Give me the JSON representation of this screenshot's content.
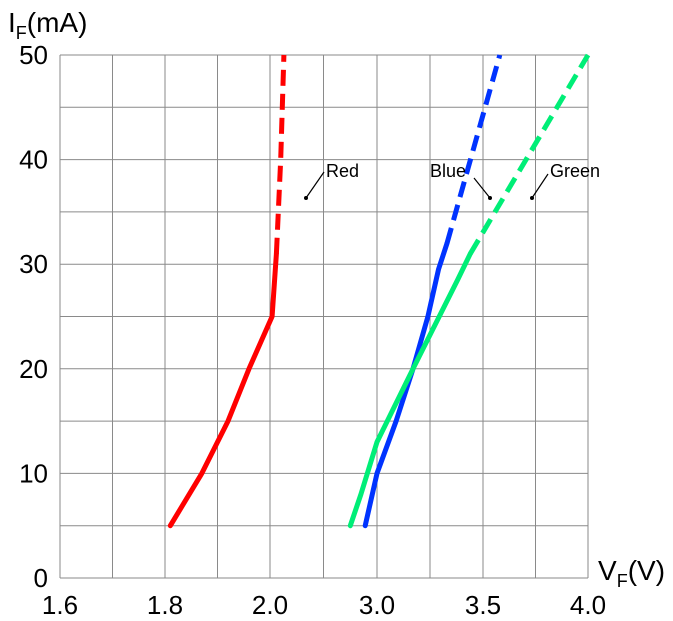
{
  "chart_data": {
    "type": "line",
    "y_axis": {
      "label_main": "I",
      "label_sub": "F",
      "label_unit": "(mA)",
      "ticks": [
        0,
        10,
        20,
        30,
        40,
        50
      ],
      "tick_labels": [
        "0",
        "10",
        "20",
        "30",
        "40",
        "50"
      ],
      "range": [
        0,
        50
      ],
      "minor_grid_step": 5
    },
    "x_axis": {
      "label_main": "V",
      "label_sub": "F",
      "label_unit": "(V)",
      "ticks": [
        1.6,
        1.8,
        2.0,
        3.0,
        3.5,
        4.0
      ],
      "tick_labels": [
        "1.6",
        "1.8",
        "2.0",
        "3.0",
        "3.5",
        "4.0"
      ],
      "note": "broken axis: 1.6–2.0 V segment, then 2.0 jumps to 3.0; minor grid lines between labeled ticks"
    },
    "grid": true,
    "series": [
      {
        "name": "Red",
        "color": "#ff0000",
        "solid": [
          [
            1.81,
            5
          ],
          [
            1.87,
            10
          ],
          [
            1.92,
            15
          ],
          [
            1.96,
            20
          ],
          [
            2.02,
            25
          ],
          [
            2.06,
            31
          ]
        ],
        "dashed": [
          [
            2.06,
            31
          ],
          [
            2.1,
            40
          ],
          [
            2.13,
            50
          ]
        ]
      },
      {
        "name": "Blue",
        "color": "#0033ff",
        "solid": [
          [
            2.89,
            5
          ],
          [
            3.0,
            10
          ],
          [
            3.09,
            15
          ],
          [
            3.17,
            20
          ],
          [
            3.24,
            25
          ],
          [
            3.29,
            29.5
          ],
          [
            3.33,
            32
          ]
        ],
        "dashed": [
          [
            3.33,
            32
          ],
          [
            3.58,
            50
          ]
        ]
      },
      {
        "name": "Green",
        "color": "#00ee77",
        "solid": [
          [
            2.75,
            5
          ],
          [
            2.85,
            8
          ],
          [
            3.0,
            13
          ],
          [
            3.17,
            20
          ],
          [
            3.38,
            28.5
          ],
          [
            3.44,
            31
          ]
        ],
        "dashed": [
          [
            3.44,
            31
          ],
          [
            4.0,
            50
          ]
        ]
      }
    ]
  }
}
